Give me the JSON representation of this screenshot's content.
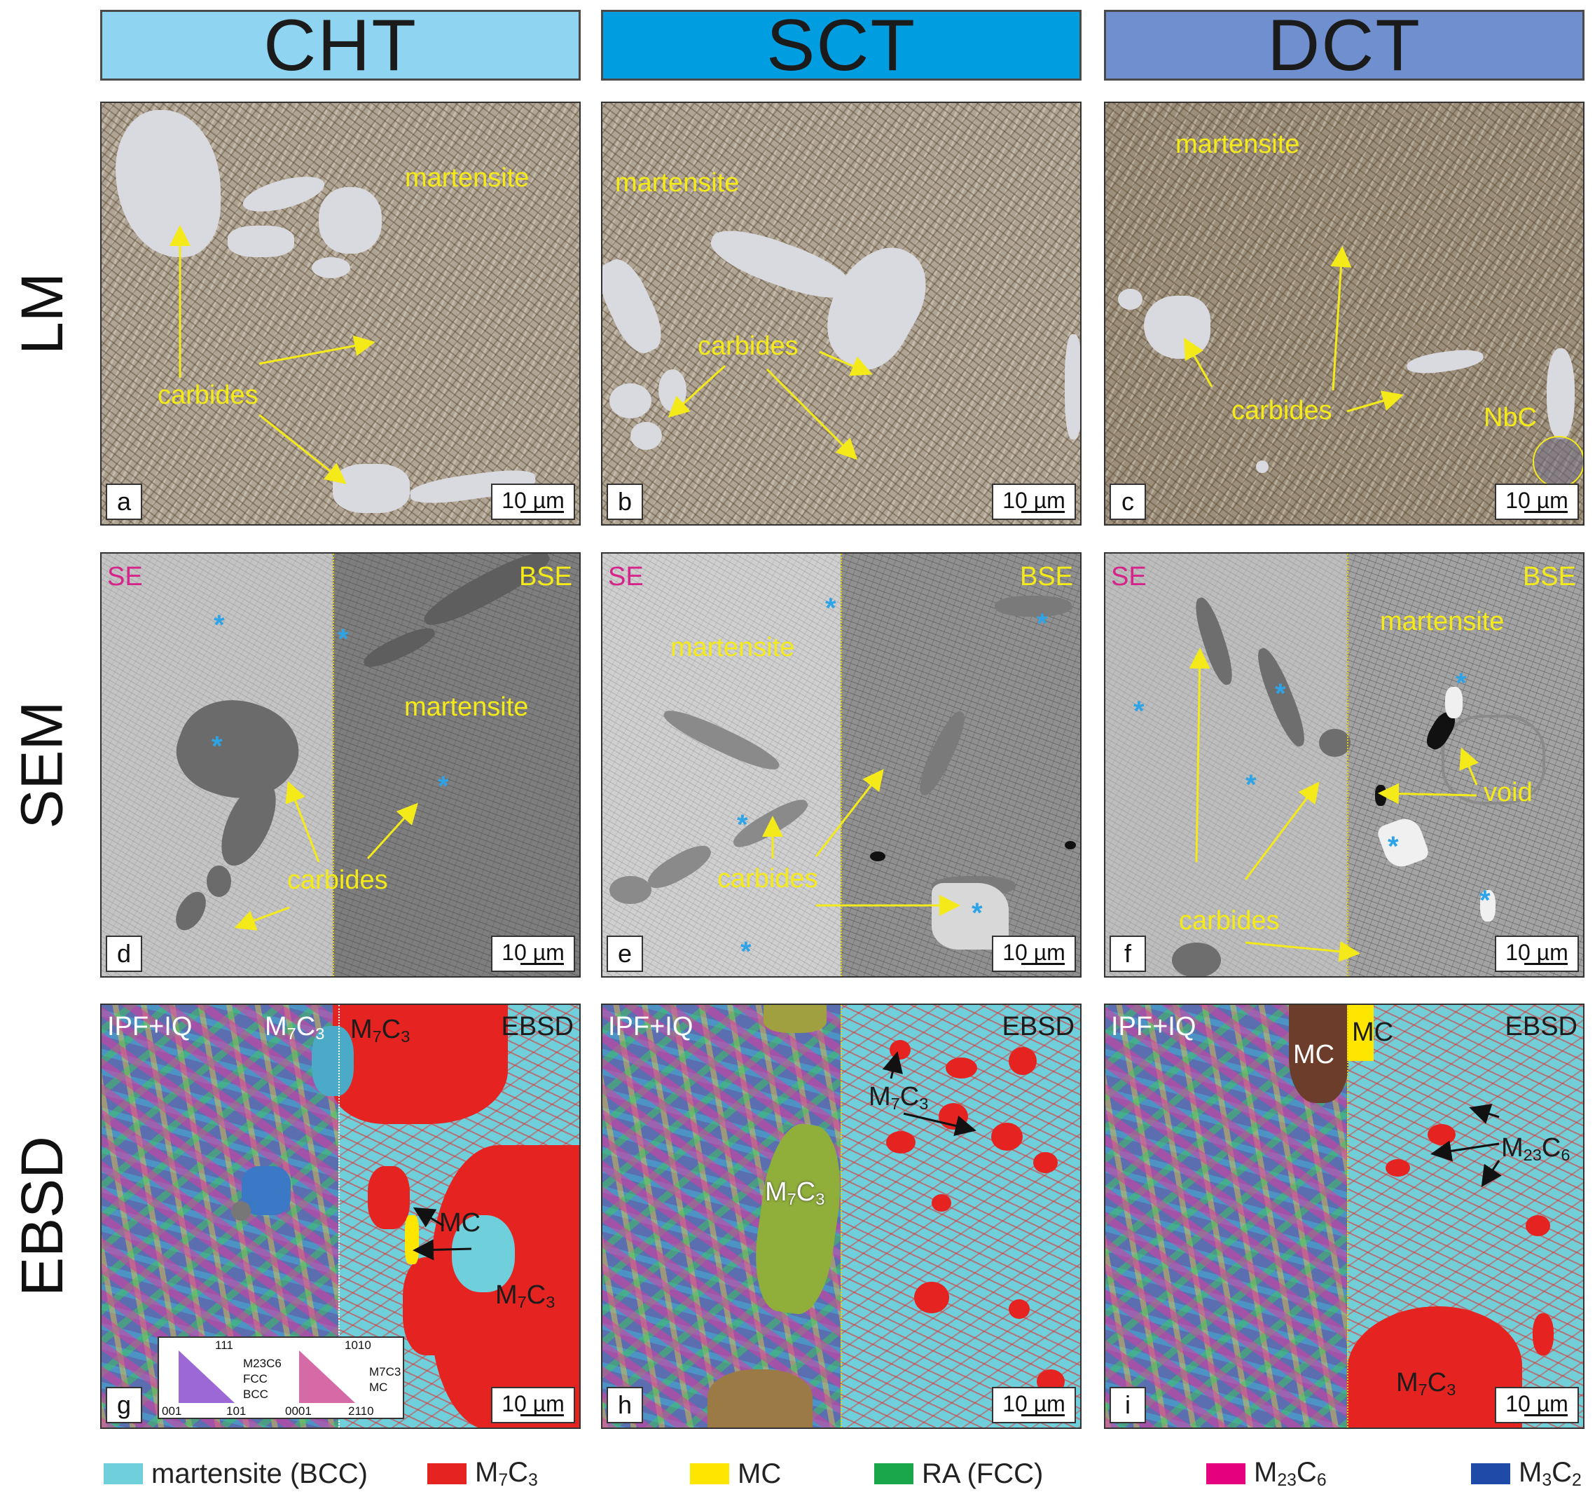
{
  "columns": [
    "CHT",
    "SCT",
    "DCT"
  ],
  "column_colors": [
    "#8fd5f2",
    "#009ee0",
    "#6f8fcf"
  ],
  "rows": [
    "LM",
    "SEM",
    "EBSD"
  ],
  "panel_letters": [
    "a",
    "b",
    "c",
    "d",
    "e",
    "f",
    "g",
    "h",
    "i"
  ],
  "scale_bar": "10 µm",
  "labels": {
    "martensite": "martensite",
    "carbides": "carbides",
    "nbc": "NbC",
    "se": "SE",
    "bse": "BSE",
    "void": "void",
    "ipf_iq": "IPF+IQ",
    "ebsd": "EBSD",
    "mc": "MC",
    "m": "M",
    "c": "C",
    "s7": "7",
    "s3": "3",
    "s23": "23",
    "s6": "6",
    "s2": "2"
  },
  "ipf_legend": {
    "cubic_top": "111",
    "cubic_left": "001",
    "cubic_right": "101",
    "cubic_phases": [
      "M23C6",
      "FCC",
      "BCC"
    ],
    "hex_top": "1010",
    "hex_left": "0001",
    "hex_right": "2110",
    "hex_phases": [
      "M7C3",
      "MC"
    ]
  },
  "legend": [
    {
      "text": "martensite (BCC)",
      "color": "#6fcfdb"
    },
    {
      "text": "M7C3",
      "color": "#e52421"
    },
    {
      "text": "MC",
      "color": "#ffe600"
    },
    {
      "text": "RA (FCC)",
      "color": "#1aa64a"
    },
    {
      "text": "M23C6",
      "color": "#e5007e"
    },
    {
      "text": "M3C2",
      "color": "#1f4aa8"
    }
  ],
  "colors": {
    "label_yellow": "#f4ea1a",
    "star_blue": "#2ea3e6",
    "se_magenta": "#d5248a",
    "m7c3_red": "#e52421",
    "mc_yellow": "#ffe600"
  }
}
